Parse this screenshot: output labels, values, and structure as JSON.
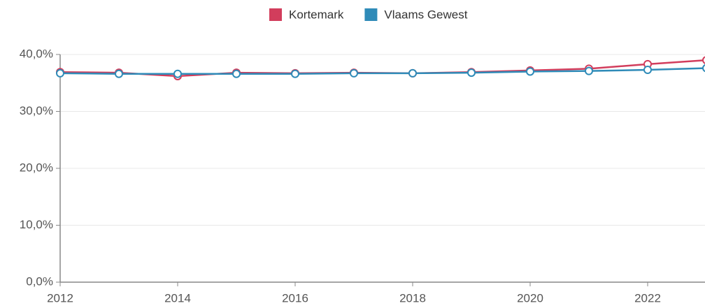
{
  "chart_data": {
    "type": "line",
    "x": [
      2012,
      2013,
      2014,
      2015,
      2016,
      2017,
      2018,
      2019,
      2020,
      2021,
      2022,
      2023
    ],
    "series": [
      {
        "name": "Kortemark",
        "color": "#d23d5c",
        "values": [
          36.9,
          36.8,
          36.2,
          36.8,
          36.7,
          36.8,
          36.7,
          36.9,
          37.2,
          37.5,
          38.3,
          39.0
        ]
      },
      {
        "name": "Vlaams Gewest",
        "color": "#2f8bb8",
        "values": [
          36.7,
          36.6,
          36.6,
          36.6,
          36.6,
          36.7,
          36.7,
          36.8,
          37.0,
          37.1,
          37.3,
          37.6
        ]
      }
    ],
    "xlim": [
      2012,
      2023
    ],
    "xticks": [
      2012,
      2014,
      2016,
      2018,
      2020,
      2022
    ],
    "ylim": [
      0,
      40
    ],
    "yticks": [
      {
        "value": 0,
        "label": "0,0%"
      },
      {
        "value": 10,
        "label": "10,0%"
      },
      {
        "value": 20,
        "label": "20,0%"
      },
      {
        "value": 30,
        "label": "30,0%"
      },
      {
        "value": 40,
        "label": "40,0%"
      }
    ],
    "grid": true,
    "legend": "top"
  }
}
